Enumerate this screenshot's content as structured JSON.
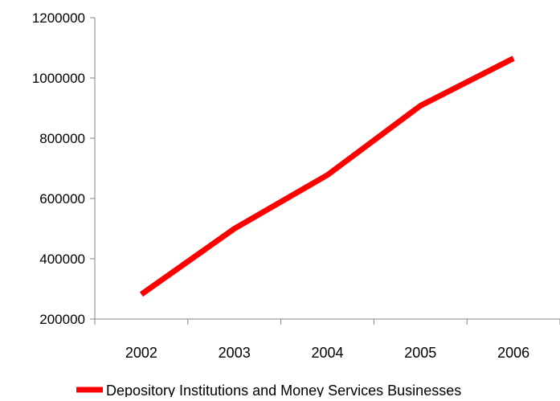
{
  "chart_data": {
    "type": "line",
    "title": "",
    "xlabel": "",
    "ylabel": "",
    "categories": [
      "2002",
      "2003",
      "2004",
      "2005",
      "2006"
    ],
    "series": [
      {
        "name": "Depository Institutions and Money Services Businesses",
        "values": [
          282000,
          500000,
          678000,
          908000,
          1065000
        ],
        "color": "#ff0000"
      }
    ],
    "ylim": [
      200000,
      1200000
    ],
    "yticks": [
      200000,
      400000,
      600000,
      800000,
      1000000,
      1200000
    ],
    "ytick_labels": [
      "200000",
      "400000",
      "600000",
      "800000",
      "1000000",
      "1200000"
    ],
    "grid": false,
    "legend_position": "bottom"
  }
}
